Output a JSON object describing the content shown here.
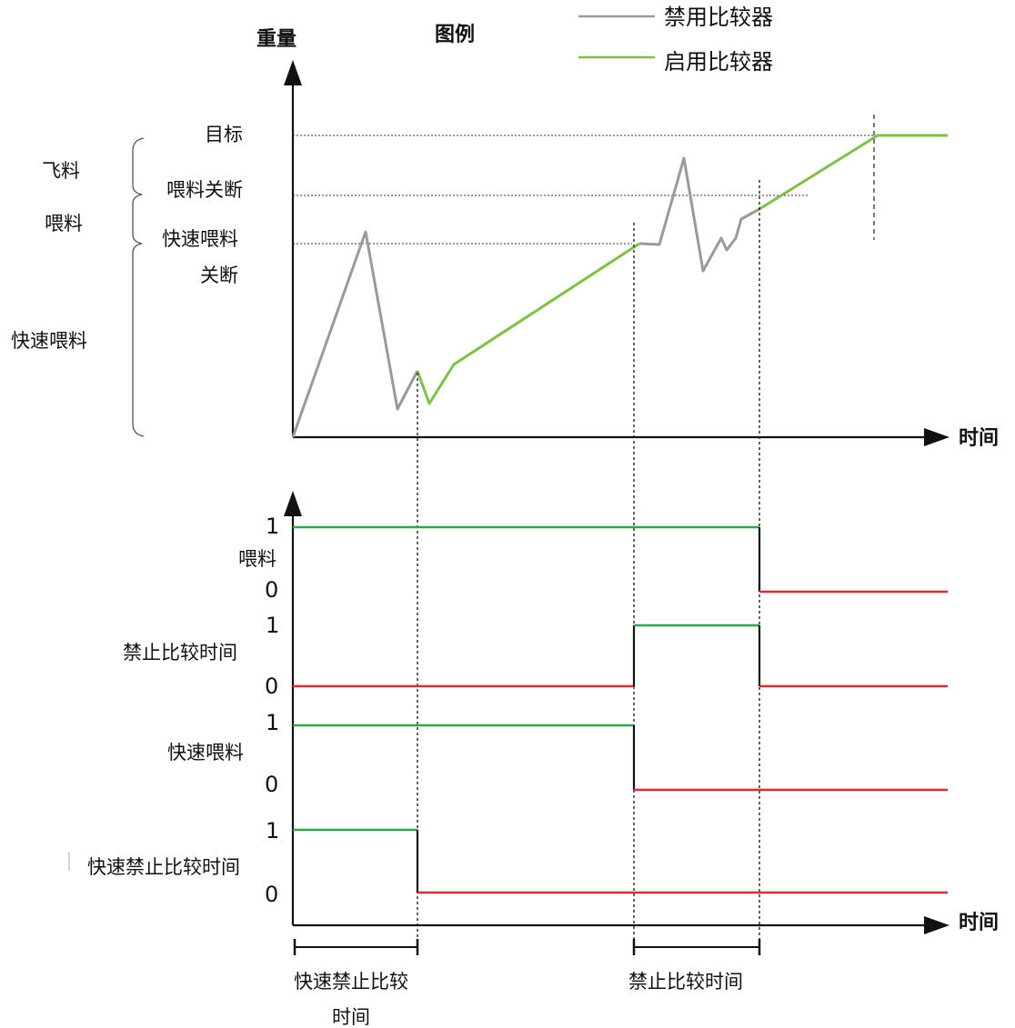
{
  "weight_axis": {
    "label": "重量",
    "time_label": "时间",
    "levels": {
      "target": "目标",
      "feed_cutoff": "喂料关断",
      "fast_feed_cutoff_1": "快速喂料",
      "fast_feed_cutoff_2": "关断"
    },
    "brackets": {
      "in_flight": "飞料",
      "feed": "喂料",
      "fast_feed": "快速喂料"
    }
  },
  "legend": {
    "title": "图例",
    "items": [
      {
        "label": "禁用比较器",
        "color": "#9a9a9a"
      },
      {
        "label": "启用比较器",
        "color": "#7dc242"
      }
    ]
  },
  "signals": {
    "high": "1",
    "low": "0",
    "feed": "喂料",
    "compare_block": "禁止比较时间",
    "fast_feed": "快速喂料",
    "fast_compare_block": "快速禁止比较时间",
    "time_label": "时间"
  },
  "intervals": {
    "fast_block_1": "快速禁止比较",
    "fast_block_2": "时间",
    "block": "禁止比较时间"
  },
  "colors": {
    "high": "#2aa84a",
    "low": "#e8272d",
    "disabled": "#9a9a9a",
    "enabled": "#7dc242",
    "axis": "#111111"
  }
}
